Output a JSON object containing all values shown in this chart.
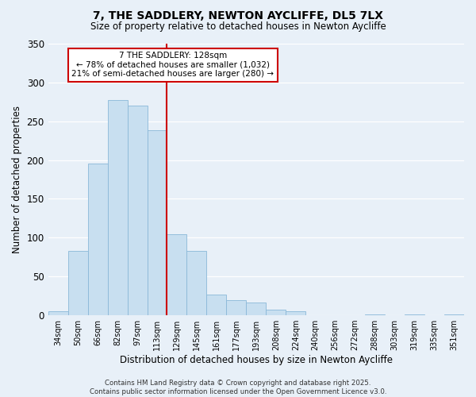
{
  "title": "7, THE SADDLERY, NEWTON AYCLIFFE, DL5 7LX",
  "subtitle": "Size of property relative to detached houses in Newton Aycliffe",
  "xlabel": "Distribution of detached houses by size in Newton Aycliffe",
  "ylabel": "Number of detached properties",
  "bar_labels": [
    "34sqm",
    "50sqm",
    "66sqm",
    "82sqm",
    "97sqm",
    "113sqm",
    "129sqm",
    "145sqm",
    "161sqm",
    "177sqm",
    "193sqm",
    "208sqm",
    "224sqm",
    "240sqm",
    "256sqm",
    "272sqm",
    "288sqm",
    "303sqm",
    "319sqm",
    "335sqm",
    "351sqm"
  ],
  "bar_values": [
    5,
    83,
    195,
    277,
    270,
    238,
    104,
    83,
    27,
    20,
    16,
    7,
    5,
    0,
    0,
    0,
    1,
    0,
    1,
    0,
    1
  ],
  "bar_color": "#c8dff0",
  "bar_edge_color": "#8ab8d8",
  "vline_color": "#cc0000",
  "annotation_title": "7 THE SADDLERY: 128sqm",
  "annotation_line1": "← 78% of detached houses are smaller (1,032)",
  "annotation_line2": "21% of semi-detached houses are larger (280) →",
  "annotation_box_color": "#ffffff",
  "annotation_box_edge": "#cc0000",
  "ylim": [
    0,
    350
  ],
  "yticks": [
    0,
    50,
    100,
    150,
    200,
    250,
    300,
    350
  ],
  "background_color": "#e8f0f8",
  "plot_bg_color": "#e8f0f8",
  "grid_color": "#ffffff",
  "footer_line1": "Contains HM Land Registry data © Crown copyright and database right 2025.",
  "footer_line2": "Contains public sector information licensed under the Open Government Licence v3.0."
}
